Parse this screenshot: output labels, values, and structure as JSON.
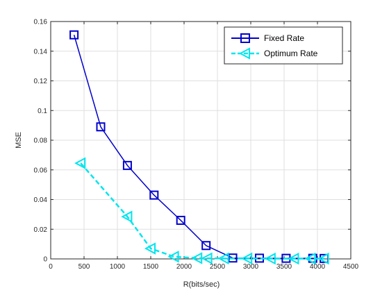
{
  "chart_data": {
    "type": "line",
    "title": "",
    "xlabel": "R(bits/sec)",
    "ylabel": "MSE",
    "xlim": [
      0,
      4500
    ],
    "ylim": [
      0,
      0.16
    ],
    "xticks": [
      0,
      500,
      1000,
      1500,
      2000,
      2500,
      3000,
      3500,
      4000,
      4500
    ],
    "yticks": [
      0,
      0.02,
      0.04,
      0.06,
      0.08,
      0.1,
      0.12,
      0.14,
      0.16
    ],
    "xtick_labels": [
      "0",
      "500",
      "1000",
      "1500",
      "2000",
      "2500",
      "3000",
      "3500",
      "4000",
      "4500"
    ],
    "ytick_labels": [
      "0",
      "0.02",
      "0.04",
      "0.06",
      "0.08",
      "0.1",
      "0.12",
      "0.14",
      "0.16"
    ],
    "grid": true,
    "legend_position": "top-right",
    "series": [
      {
        "name": "Fixed Rate",
        "color": "#0000cc",
        "line_style": "solid",
        "marker": "square",
        "x": [
          350,
          750,
          1150,
          1550,
          1950,
          2330,
          2730,
          3130,
          3530,
          3930,
          4100
        ],
        "y": [
          0.151,
          0.089,
          0.063,
          0.043,
          0.026,
          0.009,
          0.0006,
          0.0005,
          0.0004,
          0.0004,
          0.0003
        ]
      },
      {
        "name": "Optimum Rate",
        "color": "#00e5ee",
        "line_style": "dashed",
        "marker": "triangle-left",
        "x": [
          450,
          1150,
          1500,
          1850,
          2200,
          2350,
          2600,
          2950,
          3300,
          3650,
          3900,
          4100
        ],
        "y": [
          0.0645,
          0.0285,
          0.007,
          0.0015,
          0.0005,
          0.0004,
          0.0003,
          0.0003,
          0.0002,
          0.0002,
          0.0002,
          0.0002
        ]
      }
    ]
  }
}
